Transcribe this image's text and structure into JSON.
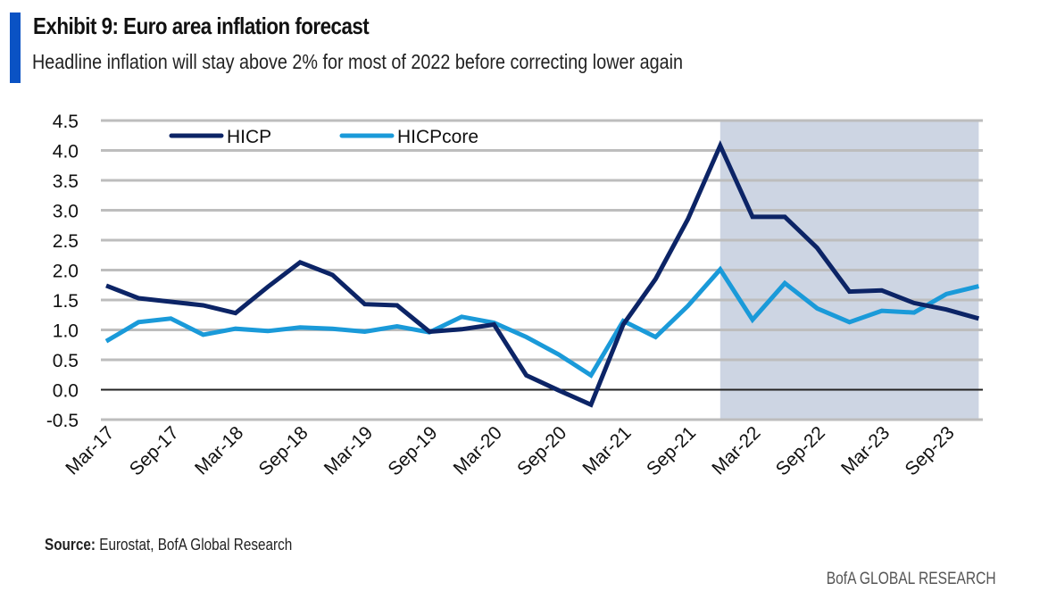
{
  "header": {
    "title": "Exhibit 9: Euro area inflation forecast",
    "subtitle": "Headline inflation will stay above 2% for most of 2022 before correcting lower again"
  },
  "footer": {
    "source_label": "Source:",
    "source_text": "Eurostat, BofA Global Research",
    "brand": "BofA GLOBAL RESEARCH"
  },
  "colors": {
    "accent": "#0a52c4",
    "hicp": "#0c2466",
    "hicpcore": "#1a9ad9",
    "forecast_shade": "#cdd5e3",
    "grid": "#bdbdbd",
    "zero_line": "#222222"
  },
  "chart_data": {
    "type": "line",
    "title": "Exhibit 9: Euro area inflation forecast",
    "xlabel": "",
    "ylabel": "",
    "ylim": [
      -0.5,
      4.5
    ],
    "yticks": [
      -0.5,
      0.0,
      0.5,
      1.0,
      1.5,
      2.0,
      2.5,
      3.0,
      3.5,
      4.0,
      4.5
    ],
    "ytick_labels": [
      "-0.5",
      "0.0",
      "0.5",
      "1.0",
      "1.5",
      "2.0",
      "2.5",
      "3.0",
      "3.5",
      "4.0",
      "4.5"
    ],
    "grid": true,
    "legend_position": "top-left",
    "x": [
      "Mar-17",
      "Jun-17",
      "Sep-17",
      "Dec-17",
      "Mar-18",
      "Jun-18",
      "Sep-18",
      "Dec-18",
      "Mar-19",
      "Jun-19",
      "Sep-19",
      "Dec-19",
      "Mar-20",
      "Jun-20",
      "Sep-20",
      "Dec-20",
      "Mar-21",
      "Jun-21",
      "Sep-21",
      "Dec-21",
      "Mar-22",
      "Jun-22",
      "Sep-22",
      "Dec-22",
      "Mar-23",
      "Jun-23",
      "Sep-23",
      "Dec-23"
    ],
    "xtick_labels": [
      "Mar-17",
      "Sep-17",
      "Mar-18",
      "Sep-18",
      "Mar-19",
      "Sep-19",
      "Mar-20",
      "Sep-20",
      "Mar-21",
      "Sep-21",
      "Mar-22",
      "Sep-22",
      "Mar-23",
      "Sep-23"
    ],
    "forecast_region": {
      "from": "Dec-21",
      "to": "Dec-23"
    },
    "series": [
      {
        "name": "HICP",
        "values": [
          1.74,
          1.53,
          1.47,
          1.41,
          1.28,
          1.72,
          2.13,
          1.92,
          1.43,
          1.41,
          0.97,
          1.01,
          1.09,
          0.24,
          -0.01,
          -0.25,
          1.09,
          1.85,
          2.85,
          4.08,
          2.89,
          2.89,
          2.37,
          1.64,
          1.66,
          1.45,
          1.34,
          1.19
        ]
      },
      {
        "name": "HICPcore",
        "values": [
          0.81,
          1.13,
          1.19,
          0.92,
          1.02,
          0.98,
          1.04,
          1.02,
          0.97,
          1.06,
          0.96,
          1.22,
          1.12,
          0.88,
          0.59,
          0.24,
          1.15,
          0.88,
          1.4,
          2.01,
          1.17,
          1.78,
          1.36,
          1.13,
          1.32,
          1.29,
          1.6,
          1.73
        ]
      }
    ]
  }
}
